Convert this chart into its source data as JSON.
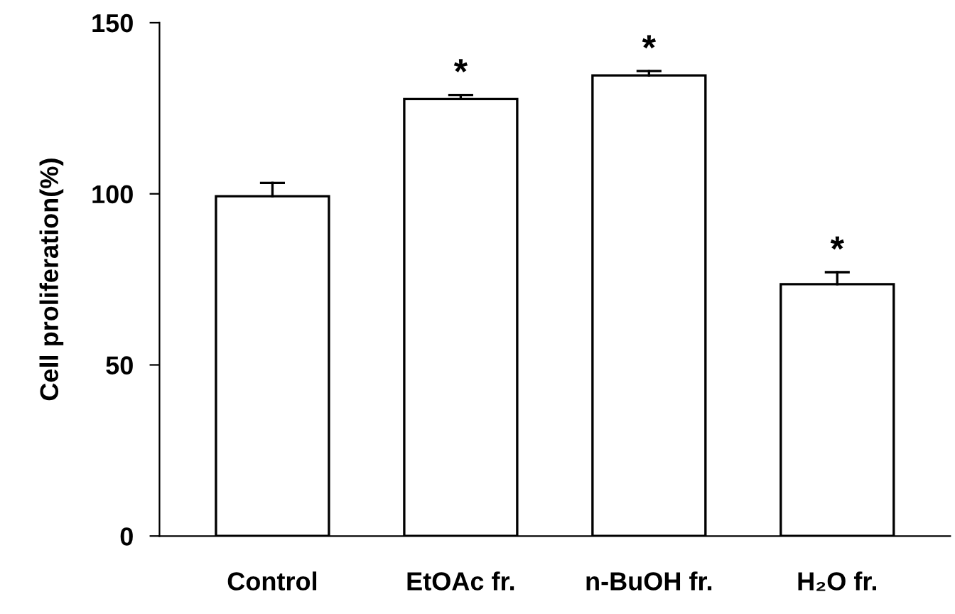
{
  "chart_data": {
    "type": "bar",
    "ylabel": "Cell proliferation(%)",
    "categories": [
      "Control",
      "EtOAc fr.",
      "n-BuOH fr.",
      "H₂O fr."
    ],
    "series": [
      {
        "color": "#ffffff",
        "values": [
          99.3,
          127.7,
          134.6,
          73.6
        ],
        "errors": [
          [
            99.3,
            103.2
          ],
          [
            127.7,
            128.9
          ],
          [
            134.6,
            135.9
          ],
          [
            73.6,
            77.1
          ]
        ]
      }
    ],
    "ylim": [
      0,
      150
    ],
    "yticks": [
      0,
      50,
      100,
      150
    ],
    "grid": false,
    "legend": false,
    "annotations": [
      {
        "text": "*",
        "x": "EtOAc fr.",
        "y": 128.9
      },
      {
        "text": "*",
        "x": "n-BuOH fr.",
        "y": 135.9
      },
      {
        "text": "*",
        "x": "H₂O fr.",
        "y": 77.1
      }
    ]
  }
}
